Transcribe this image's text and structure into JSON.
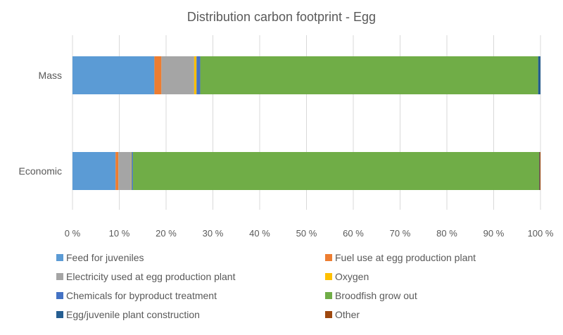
{
  "chart_data": {
    "type": "bar",
    "orientation": "horizontal",
    "stacked": true,
    "title": "Distribution carbon footprint - Egg",
    "categories": [
      "Mass",
      "Economic"
    ],
    "xlim": [
      0,
      100
    ],
    "x_ticks": [
      "0 %",
      "10 %",
      "20 %",
      "30 %",
      "40 %",
      "50 %",
      "60 %",
      "70 %",
      "80 %",
      "90 %",
      "100 %"
    ],
    "grid": true,
    "legend_position": "bottom",
    "series": [
      {
        "name": "Feed for juveniles",
        "color": "#5b9bd5",
        "values": [
          17.5,
          9.2
        ]
      },
      {
        "name": "Fuel use at egg production plant",
        "color": "#ed7d31",
        "values": [
          1.5,
          0.6
        ]
      },
      {
        "name": "Electricity used at egg production plant",
        "color": "#a5a5a5",
        "values": [
          7.0,
          2.7
        ]
      },
      {
        "name": "Oxygen",
        "color": "#ffc000",
        "values": [
          0.5,
          0.1
        ]
      },
      {
        "name": "Chemicals for byproduct treatment",
        "color": "#4472c4",
        "values": [
          0.8,
          0.3
        ]
      },
      {
        "name": "Broodfish grow out",
        "color": "#70ad47",
        "values": [
          72.2,
          86.8
        ]
      },
      {
        "name": "Egg/juvenile plant construction",
        "color": "#255e91",
        "values": [
          0.5,
          0.1
        ]
      },
      {
        "name": "Other",
        "color": "#9e480e",
        "values": [
          0.0,
          0.2
        ]
      }
    ]
  }
}
